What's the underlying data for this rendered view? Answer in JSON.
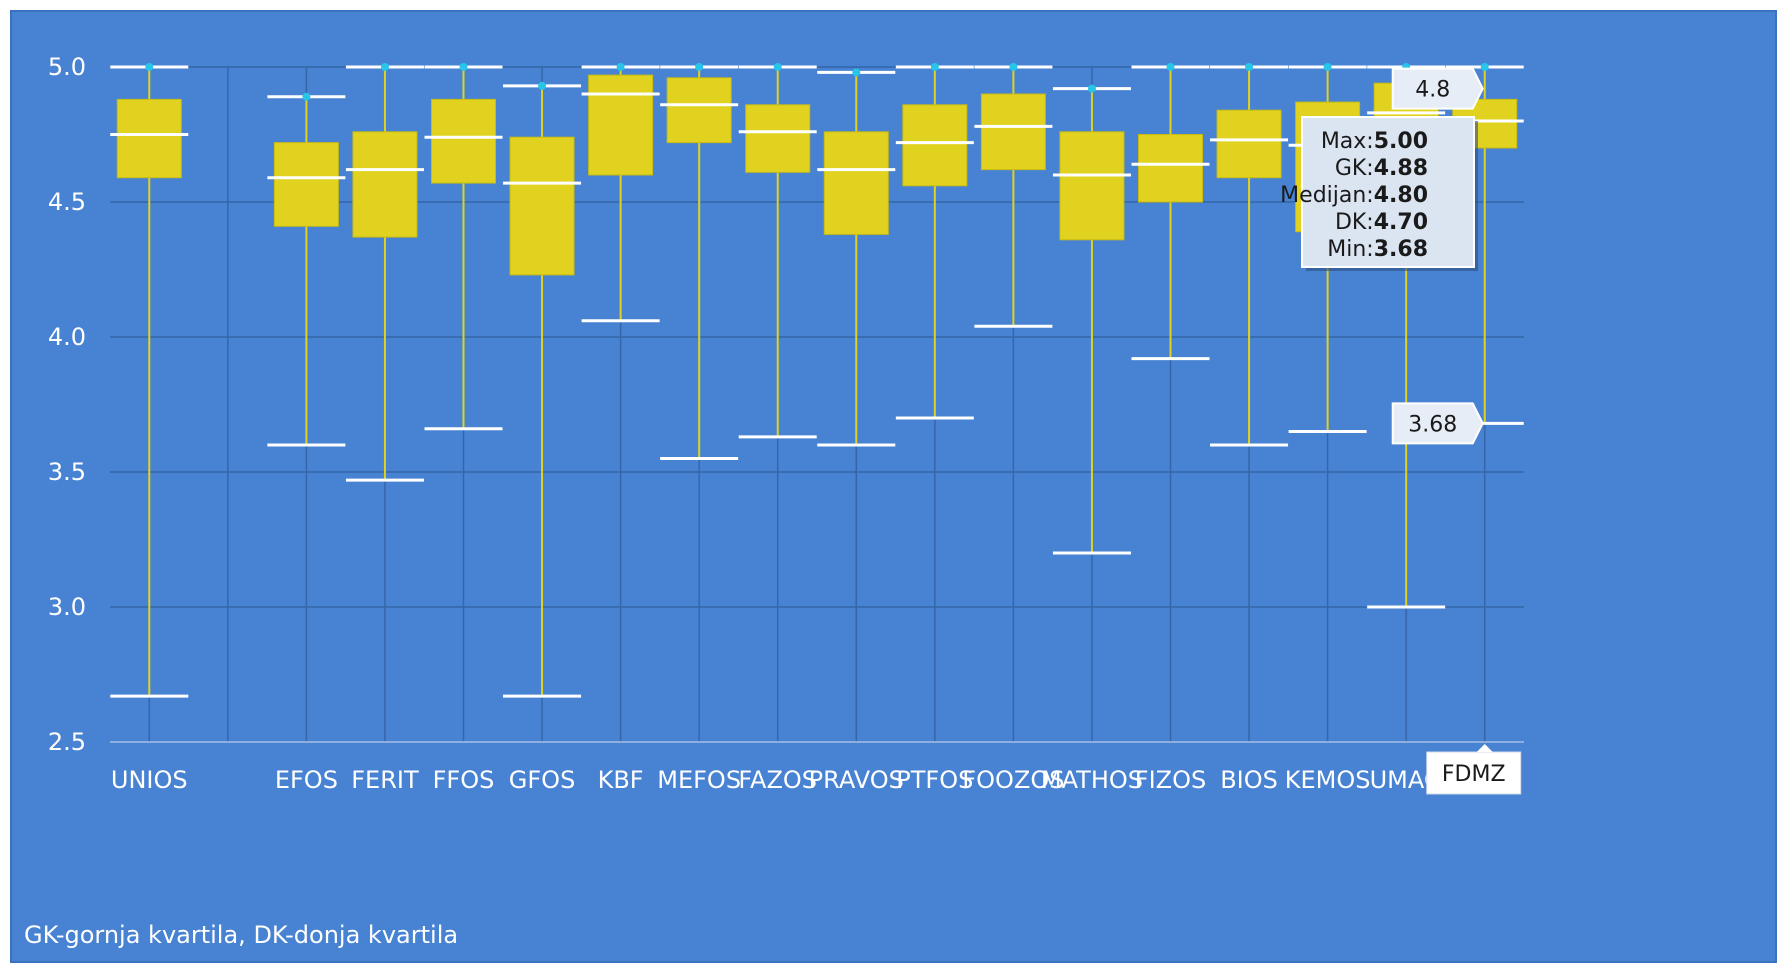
{
  "colors": {
    "background": "#4782d3",
    "box_fill": "#e0d21e",
    "whisker": "#e0d21e",
    "median_line": "#ffffff",
    "cap_line": "#ffffff",
    "max_marker": "#27c6e8",
    "grid": "#3566a8",
    "text": "#ffffff"
  },
  "footnote": "GK-gornja kvartila, DK-donja kvartila",
  "tooltip": {
    "category": "FDMZ",
    "rows": [
      {
        "label": "Max:",
        "value": "5.00"
      },
      {
        "label": "GK:",
        "value": "4.88"
      },
      {
        "label": "Medijan:",
        "value": "4.80"
      },
      {
        "label": "DK:",
        "value": "4.70"
      },
      {
        "label": "Min:",
        "value": "3.68"
      }
    ]
  },
  "callouts": {
    "median": "4.8",
    "min": "3.68"
  },
  "chart_data": {
    "type": "boxplot",
    "title": "",
    "xlabel": "",
    "ylabel": "",
    "ylim": [
      2.5,
      5.0
    ],
    "yticks": [
      "2.5",
      "3.0",
      "3.5",
      "4.0",
      "4.5",
      "5.0"
    ],
    "grid": true,
    "categories": [
      "UNIOS",
      "",
      "EFOS",
      "FERIT",
      "FFOS",
      "GFOS",
      "KBF",
      "MEFOS",
      "FAZOS",
      "PRAVOS",
      "PTFOS",
      "FOOZOS",
      "MATHOS",
      "FIZOS",
      "BIOS",
      "KEMOS",
      "UMAO",
      "FDMZ"
    ],
    "boxes": [
      {
        "min": 2.67,
        "q1": 4.59,
        "median": 4.75,
        "q3": 4.88,
        "max": 5.0
      },
      null,
      {
        "min": 3.6,
        "q1": 4.41,
        "median": 4.59,
        "q3": 4.72,
        "max": 4.89
      },
      {
        "min": 3.47,
        "q1": 4.37,
        "median": 4.62,
        "q3": 4.76,
        "max": 5.0
      },
      {
        "min": 3.66,
        "q1": 4.57,
        "median": 4.74,
        "q3": 4.88,
        "max": 5.0
      },
      {
        "min": 2.67,
        "q1": 4.23,
        "median": 4.57,
        "q3": 4.74,
        "max": 4.93
      },
      {
        "min": 4.06,
        "q1": 4.6,
        "median": 4.9,
        "q3": 4.97,
        "max": 5.0
      },
      {
        "min": 3.55,
        "q1": 4.72,
        "median": 4.86,
        "q3": 4.96,
        "max": 5.0
      },
      {
        "min": 3.63,
        "q1": 4.61,
        "median": 4.76,
        "q3": 4.86,
        "max": 5.0
      },
      {
        "min": 3.6,
        "q1": 4.38,
        "median": 4.62,
        "q3": 4.76,
        "max": 4.98
      },
      {
        "min": 3.7,
        "q1": 4.56,
        "median": 4.72,
        "q3": 4.86,
        "max": 5.0
      },
      {
        "min": 4.04,
        "q1": 4.62,
        "median": 4.78,
        "q3": 4.9,
        "max": 5.0
      },
      {
        "min": 3.2,
        "q1": 4.36,
        "median": 4.6,
        "q3": 4.76,
        "max": 4.92
      },
      {
        "min": 3.92,
        "q1": 4.5,
        "median": 4.64,
        "q3": 4.75,
        "max": 5.0
      },
      {
        "min": 3.6,
        "q1": 4.59,
        "median": 4.73,
        "q3": 4.84,
        "max": 5.0
      },
      {
        "min": 3.65,
        "q1": 4.39,
        "median": 4.71,
        "q3": 4.87,
        "max": 5.0
      },
      {
        "min": 3.0,
        "q1": 4.45,
        "median": 4.83,
        "q3": 4.94,
        "max": 5.0
      },
      {
        "min": 3.68,
        "q1": 4.7,
        "median": 4.8,
        "q3": 4.88,
        "max": 5.0
      }
    ]
  }
}
